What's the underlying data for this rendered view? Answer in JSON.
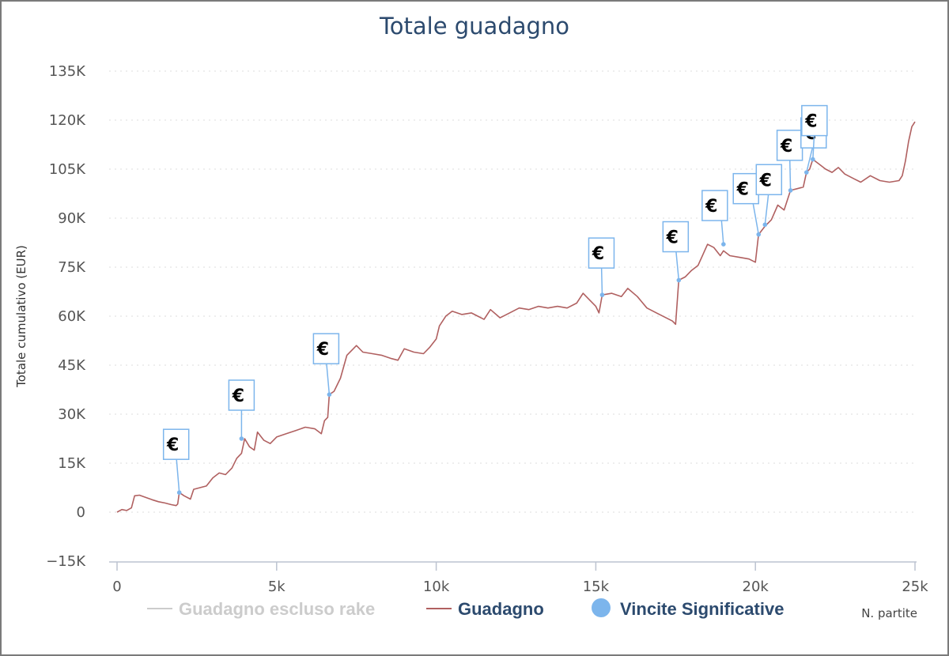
{
  "chart_data": {
    "type": "line",
    "title": "Totale guadagno",
    "xlabel": "N. partite",
    "ylabel": "Totale cumulativo (EUR)",
    "xlim": [
      0,
      25000
    ],
    "ylim": [
      -15000,
      135000
    ],
    "x_ticks": [
      {
        "value": 0,
        "label": "0"
      },
      {
        "value": 5000,
        "label": "5k"
      },
      {
        "value": 10000,
        "label": "10k"
      },
      {
        "value": 15000,
        "label": "15k"
      },
      {
        "value": 20000,
        "label": "20k"
      },
      {
        "value": 25000,
        "label": "25k"
      }
    ],
    "y_ticks": [
      {
        "value": -15000,
        "label": "−15K"
      },
      {
        "value": 0,
        "label": "0"
      },
      {
        "value": 15000,
        "label": "15K"
      },
      {
        "value": 30000,
        "label": "30K"
      },
      {
        "value": 45000,
        "label": "45K"
      },
      {
        "value": 60000,
        "label": "60K"
      },
      {
        "value": 75000,
        "label": "75K"
      },
      {
        "value": 90000,
        "label": "90K"
      },
      {
        "value": 105000,
        "label": "105K"
      },
      {
        "value": 120000,
        "label": "120K"
      },
      {
        "value": 135000,
        "label": "135K"
      }
    ],
    "grid": "horizontal dotted",
    "legend_position": "bottom",
    "legend": [
      {
        "name": "Guadagno escluso rake",
        "color": "#cccccc",
        "marker": "line",
        "hidden": true
      },
      {
        "name": "Guadagno",
        "color": "#b06060",
        "marker": "line"
      },
      {
        "name": "Vincite Significative",
        "color": "#7cb5ec",
        "marker": "circle"
      }
    ],
    "series": [
      {
        "name": "Guadagno",
        "color": "#b06060",
        "points": [
          [
            0,
            0
          ],
          [
            150,
            800
          ],
          [
            300,
            500
          ],
          [
            450,
            1300
          ],
          [
            550,
            5000
          ],
          [
            700,
            5200
          ],
          [
            900,
            4500
          ],
          [
            1100,
            3800
          ],
          [
            1300,
            3200
          ],
          [
            1500,
            2800
          ],
          [
            1700,
            2300
          ],
          [
            1850,
            2000
          ],
          [
            1900,
            2500
          ],
          [
            1950,
            6000
          ],
          [
            2100,
            5000
          ],
          [
            2300,
            4000
          ],
          [
            2400,
            7000
          ],
          [
            2600,
            7500
          ],
          [
            2800,
            8000
          ],
          [
            3000,
            10500
          ],
          [
            3200,
            12000
          ],
          [
            3400,
            11500
          ],
          [
            3600,
            13500
          ],
          [
            3750,
            16500
          ],
          [
            3900,
            18000
          ],
          [
            4000,
            22500
          ],
          [
            4150,
            20000
          ],
          [
            4300,
            19000
          ],
          [
            4400,
            24500
          ],
          [
            4600,
            22000
          ],
          [
            4800,
            21000
          ],
          [
            5000,
            23000
          ],
          [
            5300,
            24000
          ],
          [
            5600,
            25000
          ],
          [
            5900,
            26000
          ],
          [
            6200,
            25500
          ],
          [
            6400,
            24000
          ],
          [
            6500,
            28000
          ],
          [
            6600,
            29000
          ],
          [
            6650,
            36000
          ],
          [
            6800,
            37000
          ],
          [
            7000,
            41000
          ],
          [
            7200,
            48000
          ],
          [
            7400,
            50000
          ],
          [
            7500,
            51000
          ],
          [
            7700,
            49000
          ],
          [
            8000,
            48500
          ],
          [
            8300,
            48000
          ],
          [
            8600,
            47000
          ],
          [
            8800,
            46500
          ],
          [
            9000,
            50000
          ],
          [
            9300,
            49000
          ],
          [
            9600,
            48500
          ],
          [
            9800,
            50500
          ],
          [
            10000,
            53000
          ],
          [
            10100,
            57000
          ],
          [
            10300,
            60000
          ],
          [
            10500,
            61500
          ],
          [
            10800,
            60500
          ],
          [
            11100,
            61000
          ],
          [
            11300,
            60000
          ],
          [
            11500,
            59000
          ],
          [
            11700,
            62000
          ],
          [
            12000,
            59500
          ],
          [
            12300,
            61000
          ],
          [
            12600,
            62500
          ],
          [
            12900,
            62000
          ],
          [
            13200,
            63000
          ],
          [
            13500,
            62500
          ],
          [
            13800,
            63000
          ],
          [
            14100,
            62500
          ],
          [
            14400,
            64000
          ],
          [
            14600,
            67000
          ],
          [
            14800,
            65000
          ],
          [
            15000,
            63000
          ],
          [
            15100,
            61000
          ],
          [
            15200,
            66500
          ],
          [
            15500,
            67000
          ],
          [
            15800,
            66000
          ],
          [
            16000,
            68500
          ],
          [
            16300,
            66000
          ],
          [
            16600,
            62500
          ],
          [
            16900,
            61000
          ],
          [
            17200,
            59500
          ],
          [
            17400,
            58500
          ],
          [
            17500,
            57500
          ],
          [
            17600,
            71000
          ],
          [
            17800,
            72000
          ],
          [
            18000,
            74000
          ],
          [
            18200,
            75500
          ],
          [
            18500,
            82000
          ],
          [
            18700,
            81000
          ],
          [
            18900,
            78500
          ],
          [
            19000,
            80000
          ],
          [
            19200,
            78500
          ],
          [
            19500,
            78000
          ],
          [
            19800,
            77500
          ],
          [
            20000,
            76500
          ],
          [
            20100,
            85000
          ],
          [
            20300,
            87500
          ],
          [
            20500,
            89500
          ],
          [
            20700,
            94000
          ],
          [
            20900,
            92500
          ],
          [
            21100,
            98500
          ],
          [
            21300,
            99000
          ],
          [
            21500,
            99500
          ],
          [
            21600,
            104000
          ],
          [
            21700,
            105000
          ],
          [
            21800,
            108000
          ],
          [
            22000,
            106500
          ],
          [
            22200,
            105000
          ],
          [
            22400,
            104000
          ],
          [
            22600,
            105500
          ],
          [
            22800,
            103500
          ],
          [
            23100,
            102000
          ],
          [
            23300,
            101000
          ],
          [
            23600,
            103000
          ],
          [
            23900,
            101500
          ],
          [
            24200,
            101000
          ],
          [
            24500,
            101500
          ],
          [
            24600,
            103000
          ],
          [
            24700,
            107500
          ],
          [
            24800,
            113500
          ],
          [
            24900,
            118000
          ],
          [
            25000,
            119500
          ]
        ]
      },
      {
        "name": "Vincite Significative",
        "color": "#7cb5ec",
        "marker_label": "€",
        "points": [
          [
            1950,
            6000
          ],
          [
            3900,
            22500
          ],
          [
            6650,
            36000
          ],
          [
            15200,
            66500
          ],
          [
            17600,
            71000
          ],
          [
            19000,
            82000
          ],
          [
            20100,
            85000
          ],
          [
            20300,
            88000
          ],
          [
            21100,
            98500
          ],
          [
            21600,
            104000
          ],
          [
            21800,
            108000
          ]
        ]
      }
    ]
  }
}
